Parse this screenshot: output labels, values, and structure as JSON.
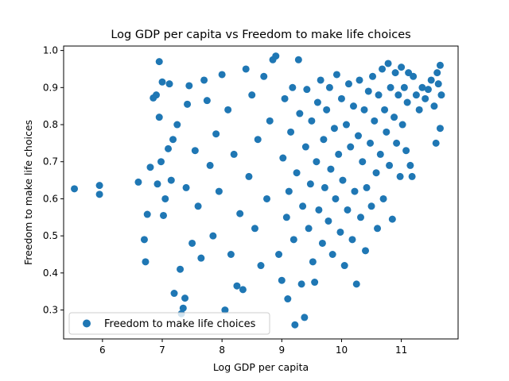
{
  "chart_data": {
    "type": "scatter",
    "title": "Log GDP per capita vs Freedom to make life choices",
    "xlabel": "Log GDP per capita",
    "ylabel": "Freedom to make life choices",
    "xlim": [
      5.35,
      11.95
    ],
    "ylim": [
      0.222,
      1.012
    ],
    "xticks": [
      "6",
      "7",
      "8",
      "9",
      "10",
      "11"
    ],
    "yticks": [
      "0.3",
      "0.4",
      "0.5",
      "0.6",
      "0.7",
      "0.8",
      "0.9",
      "1.0"
    ],
    "grid": false,
    "legend_position": "lower-left",
    "series": [
      {
        "name": "Freedom to make life choices",
        "color": "#1f77b4",
        "points": [
          [
            5.53,
            0.627
          ],
          [
            5.95,
            0.636
          ],
          [
            5.95,
            0.612
          ],
          [
            6.6,
            0.645
          ],
          [
            6.7,
            0.49
          ],
          [
            6.72,
            0.43
          ],
          [
            6.75,
            0.558
          ],
          [
            6.8,
            0.685
          ],
          [
            6.85,
            0.872
          ],
          [
            6.9,
            0.88
          ],
          [
            6.92,
            0.64
          ],
          [
            6.95,
            0.97
          ],
          [
            6.95,
            0.82
          ],
          [
            6.98,
            0.7
          ],
          [
            7.0,
            0.915
          ],
          [
            7.02,
            0.555
          ],
          [
            7.05,
            0.6
          ],
          [
            7.1,
            0.735
          ],
          [
            7.12,
            0.91
          ],
          [
            7.15,
            0.65
          ],
          [
            7.18,
            0.76
          ],
          [
            7.2,
            0.345
          ],
          [
            7.25,
            0.8
          ],
          [
            7.3,
            0.41
          ],
          [
            7.32,
            0.29
          ],
          [
            7.35,
            0.305
          ],
          [
            7.38,
            0.332
          ],
          [
            7.4,
            0.63
          ],
          [
            7.42,
            0.855
          ],
          [
            7.45,
            0.905
          ],
          [
            7.5,
            0.48
          ],
          [
            7.55,
            0.73
          ],
          [
            7.6,
            0.58
          ],
          [
            7.65,
            0.44
          ],
          [
            7.7,
            0.92
          ],
          [
            7.75,
            0.865
          ],
          [
            7.8,
            0.69
          ],
          [
            7.85,
            0.5
          ],
          [
            7.9,
            0.775
          ],
          [
            7.95,
            0.62
          ],
          [
            8.0,
            0.935
          ],
          [
            8.05,
            0.3
          ],
          [
            8.1,
            0.84
          ],
          [
            8.15,
            0.45
          ],
          [
            8.2,
            0.72
          ],
          [
            8.25,
            0.365
          ],
          [
            8.3,
            0.56
          ],
          [
            8.35,
            0.355
          ],
          [
            8.4,
            0.95
          ],
          [
            8.45,
            0.66
          ],
          [
            8.5,
            0.88
          ],
          [
            8.55,
            0.52
          ],
          [
            8.6,
            0.76
          ],
          [
            8.65,
            0.42
          ],
          [
            8.7,
            0.93
          ],
          [
            8.75,
            0.6
          ],
          [
            8.8,
            0.81
          ],
          [
            8.85,
            0.975
          ],
          [
            8.9,
            0.985
          ],
          [
            8.95,
            0.45
          ],
          [
            9.0,
            0.38
          ],
          [
            9.02,
            0.71
          ],
          [
            9.05,
            0.87
          ],
          [
            9.08,
            0.55
          ],
          [
            9.1,
            0.33
          ],
          [
            9.12,
            0.62
          ],
          [
            9.15,
            0.78
          ],
          [
            9.18,
            0.9
          ],
          [
            9.2,
            0.49
          ],
          [
            9.22,
            0.26
          ],
          [
            9.25,
            0.67
          ],
          [
            9.28,
            0.975
          ],
          [
            9.3,
            0.83
          ],
          [
            9.33,
            0.37
          ],
          [
            9.35,
            0.58
          ],
          [
            9.38,
            0.28
          ],
          [
            9.4,
            0.74
          ],
          [
            9.42,
            0.895
          ],
          [
            9.45,
            0.52
          ],
          [
            9.48,
            0.64
          ],
          [
            9.5,
            0.81
          ],
          [
            9.52,
            0.43
          ],
          [
            9.55,
            0.375
          ],
          [
            9.58,
            0.7
          ],
          [
            9.6,
            0.86
          ],
          [
            9.62,
            0.57
          ],
          [
            9.65,
            0.92
          ],
          [
            9.68,
            0.48
          ],
          [
            9.7,
            0.76
          ],
          [
            9.72,
            0.63
          ],
          [
            9.75,
            0.84
          ],
          [
            9.78,
            0.54
          ],
          [
            9.8,
            0.9
          ],
          [
            9.82,
            0.68
          ],
          [
            9.85,
            0.45
          ],
          [
            9.88,
            0.79
          ],
          [
            9.9,
            0.6
          ],
          [
            9.92,
            0.935
          ],
          [
            9.95,
            0.72
          ],
          [
            9.98,
            0.51
          ],
          [
            10.0,
            0.87
          ],
          [
            10.02,
            0.65
          ],
          [
            10.05,
            0.42
          ],
          [
            10.08,
            0.8
          ],
          [
            10.1,
            0.57
          ],
          [
            10.12,
            0.91
          ],
          [
            10.15,
            0.74
          ],
          [
            10.18,
            0.49
          ],
          [
            10.2,
            0.85
          ],
          [
            10.22,
            0.62
          ],
          [
            10.25,
            0.37
          ],
          [
            10.28,
            0.77
          ],
          [
            10.3,
            0.92
          ],
          [
            10.32,
            0.55
          ],
          [
            10.35,
            0.7
          ],
          [
            10.38,
            0.84
          ],
          [
            10.4,
            0.46
          ],
          [
            10.42,
            0.63
          ],
          [
            10.45,
            0.89
          ],
          [
            10.48,
            0.75
          ],
          [
            10.5,
            0.58
          ],
          [
            10.52,
            0.93
          ],
          [
            10.55,
            0.81
          ],
          [
            10.58,
            0.67
          ],
          [
            10.6,
            0.52
          ],
          [
            10.62,
            0.88
          ],
          [
            10.65,
            0.72
          ],
          [
            10.68,
            0.95
          ],
          [
            10.7,
            0.6
          ],
          [
            10.72,
            0.84
          ],
          [
            10.75,
            0.78
          ],
          [
            10.78,
            0.965
          ],
          [
            10.8,
            0.69
          ],
          [
            10.82,
            0.9
          ],
          [
            10.85,
            0.545
          ],
          [
            10.88,
            0.82
          ],
          [
            10.9,
            0.94
          ],
          [
            10.92,
            0.75
          ],
          [
            10.95,
            0.88
          ],
          [
            10.98,
            0.66
          ],
          [
            11.0,
            0.955
          ],
          [
            11.02,
            0.8
          ],
          [
            11.05,
            0.9
          ],
          [
            11.08,
            0.73
          ],
          [
            11.1,
            0.86
          ],
          [
            11.12,
            0.94
          ],
          [
            11.15,
            0.69
          ],
          [
            11.18,
            0.66
          ],
          [
            11.2,
            0.93
          ],
          [
            11.25,
            0.88
          ],
          [
            11.3,
            0.84
          ],
          [
            11.35,
            0.9
          ],
          [
            11.4,
            0.87
          ],
          [
            11.45,
            0.895
          ],
          [
            11.5,
            0.92
          ],
          [
            11.55,
            0.85
          ],
          [
            11.58,
            0.75
          ],
          [
            11.6,
            0.94
          ],
          [
            11.62,
            0.91
          ],
          [
            11.65,
            0.79
          ],
          [
            11.65,
            0.96
          ],
          [
            11.67,
            0.88
          ]
        ]
      }
    ]
  }
}
